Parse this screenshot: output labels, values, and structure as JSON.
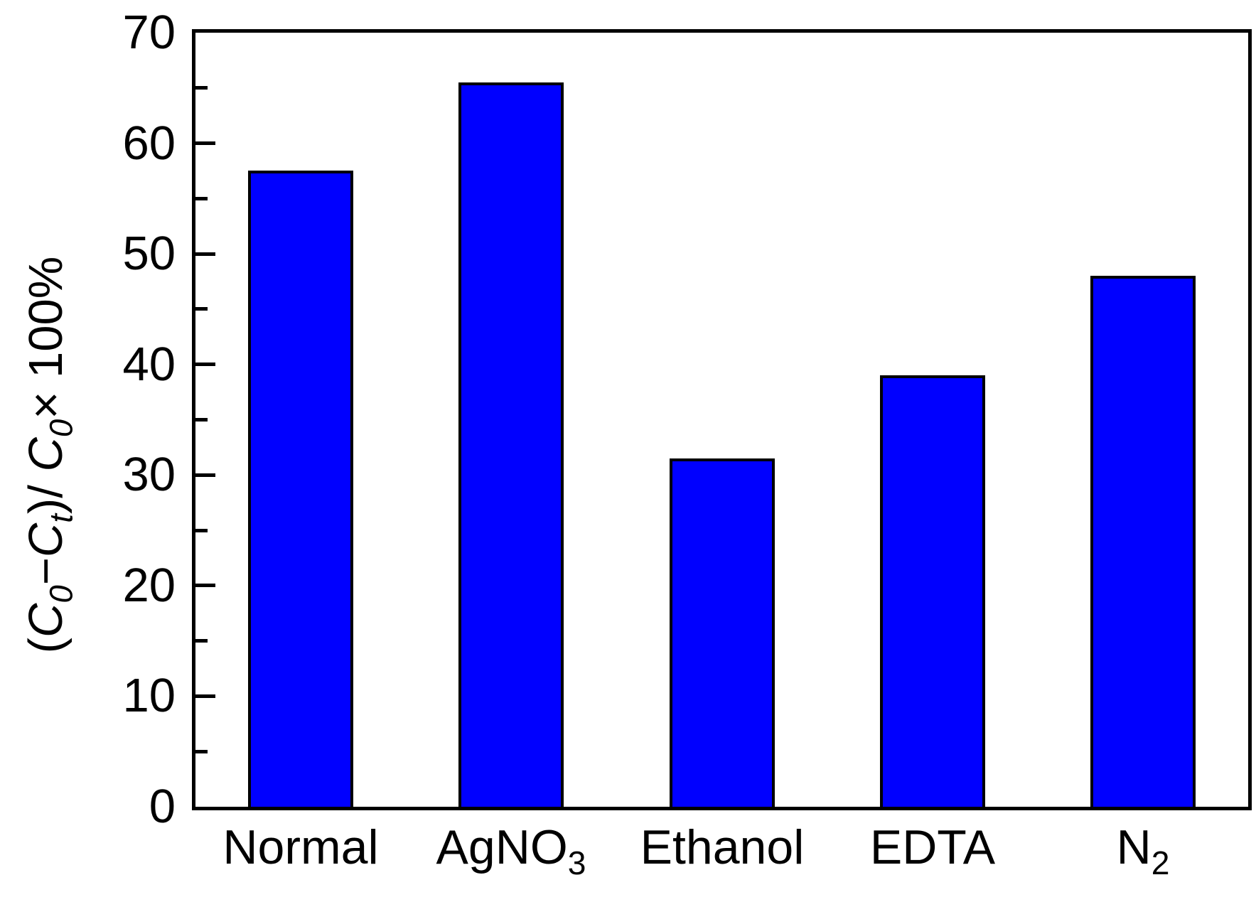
{
  "chart_data": {
    "type": "bar",
    "title": "",
    "categories": [
      "Normal",
      "AgNO3",
      "Ethanol",
      "EDTA",
      "N2"
    ],
    "x_labels": [
      {
        "base": "Normal",
        "sub": ""
      },
      {
        "base": "AgNO",
        "sub": "3"
      },
      {
        "base": "Ethanol",
        "sub": ""
      },
      {
        "base": "EDTA",
        "sub": ""
      },
      {
        "base": "N",
        "sub": "2"
      }
    ],
    "values": [
      57.5,
      65.5,
      31.5,
      39.0,
      48.0
    ],
    "xlabel": "",
    "ylabel_plain": "(C0−Ct)/ C0 × 100%",
    "ylabel_segments": [
      {
        "t": "(",
        "style": "normal"
      },
      {
        "t": "C",
        "style": "italic"
      },
      {
        "t": "0",
        "style": "sub"
      },
      {
        "t": "−",
        "style": "normal"
      },
      {
        "t": "C",
        "style": "italic"
      },
      {
        "t": "t",
        "style": "sub"
      },
      {
        "t": ")/ ",
        "style": "normal"
      },
      {
        "t": "C",
        "style": "italic"
      },
      {
        "t": "0",
        "style": "sub"
      },
      {
        "t": "× 100%",
        "style": "normal"
      }
    ],
    "ylim": [
      0,
      70
    ],
    "yticks_major": [
      0,
      10,
      20,
      30,
      40,
      50,
      60,
      70
    ],
    "yticks_minor": [
      5,
      15,
      25,
      35,
      45,
      55,
      65
    ],
    "grid": false,
    "legend": false,
    "bar_color": "#0000FF",
    "bar_edge_color": "#000000",
    "axis_color": "#000000",
    "background_color": "#FFFFFF",
    "bar_width_fraction": 0.5
  }
}
